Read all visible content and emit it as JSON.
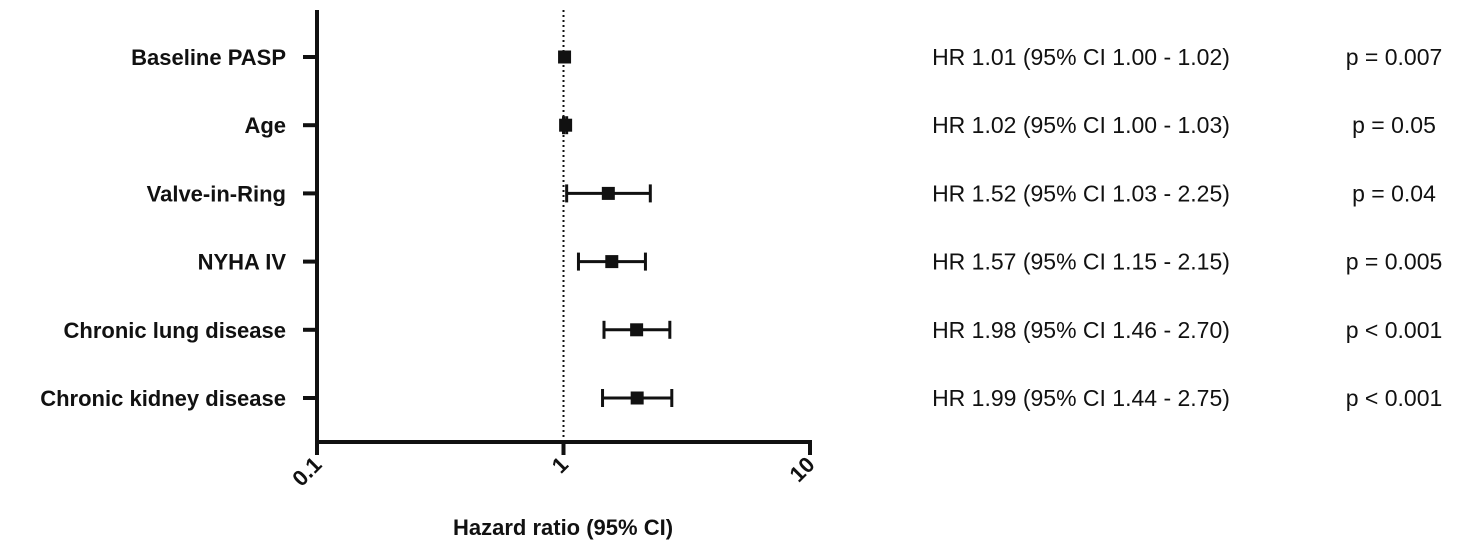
{
  "chart_data": {
    "type": "forest",
    "xlabel": "Hazard ratio (95% CI)",
    "x_scale": "log",
    "xlim": [
      0.1,
      10
    ],
    "x_ticks": [
      "0.1",
      "1",
      "10"
    ],
    "reference_line": 1,
    "rows": [
      {
        "label": "Baseline PASP",
        "hr": 1.01,
        "ci_low": 1.0,
        "ci_high": 1.02,
        "hr_text": "HR 1.01 (95% CI 1.00 - 1.02)",
        "p_text": "p = 0.007"
      },
      {
        "label": "Age",
        "hr": 1.02,
        "ci_low": 1.0,
        "ci_high": 1.03,
        "hr_text": "HR 1.02 (95% CI 1.00 - 1.03)",
        "p_text": "p = 0.05"
      },
      {
        "label": "Valve-in-Ring",
        "hr": 1.52,
        "ci_low": 1.03,
        "ci_high": 2.25,
        "hr_text": "HR 1.52 (95% CI 1.03 - 2.25)",
        "p_text": "p = 0.04"
      },
      {
        "label": "NYHA IV",
        "hr": 1.57,
        "ci_low": 1.15,
        "ci_high": 2.15,
        "hr_text": "HR 1.57 (95% CI 1.15 - 2.15)",
        "p_text": "p = 0.005"
      },
      {
        "label": "Chronic lung disease",
        "hr": 1.98,
        "ci_low": 1.46,
        "ci_high": 2.7,
        "hr_text": "HR 1.98 (95% CI 1.46 - 2.70)",
        "p_text": "p < 0.001"
      },
      {
        "label": "Chronic kidney disease",
        "hr": 1.99,
        "ci_low": 1.44,
        "ci_high": 2.75,
        "hr_text": "HR 1.99 (95% CI 1.44 - 2.75)",
        "p_text": "p < 0.001"
      }
    ],
    "colors": {
      "marker": "#111111",
      "axis": "#111111",
      "reference_line": "#111111"
    }
  }
}
